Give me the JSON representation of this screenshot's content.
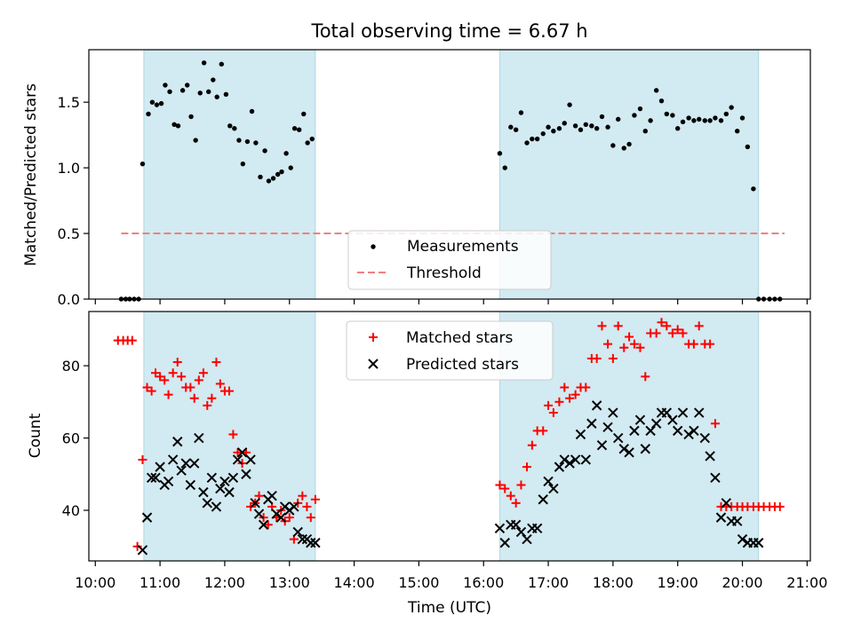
{
  "title": "Total observing time = 6.67 h",
  "colors": {
    "band": "#add8e6",
    "matched": "#ff0000",
    "predicted": "#000000",
    "threshold": "#f08080",
    "measurement": "#000000"
  },
  "chart_data": [
    {
      "type": "scatter",
      "ylabel": "Matched/Predicted stars",
      "ylim": [
        0,
        1.9
      ],
      "xlim": [
        9.9,
        21.05
      ],
      "ticks_y": [
        "0.0",
        "0.5",
        "1.0",
        "1.5"
      ],
      "observing_windows": [
        [
          10.75,
          13.4
        ],
        [
          16.25,
          20.25
        ]
      ],
      "threshold": {
        "value": 0.5,
        "x_range": [
          10.4,
          20.65
        ]
      },
      "legend": {
        "position": "bottom-center",
        "entries": [
          "Measurements",
          "Threshold"
        ]
      },
      "series": [
        {
          "name": "Measurements",
          "x": [
            10.4,
            10.47,
            10.53,
            10.6,
            10.67,
            10.73,
            10.82,
            10.88,
            10.95,
            11.02,
            11.08,
            11.15,
            11.22,
            11.28,
            11.35,
            11.42,
            11.48,
            11.55,
            11.62,
            11.68,
            11.75,
            11.82,
            11.88,
            11.95,
            12.02,
            12.08,
            12.15,
            12.22,
            12.28,
            12.35,
            12.42,
            12.48,
            12.55,
            12.62,
            12.68,
            12.75,
            12.82,
            12.88,
            12.95,
            13.02,
            13.08,
            13.15,
            13.22,
            13.28,
            13.35,
            16.25,
            16.33,
            16.42,
            16.5,
            16.58,
            16.67,
            16.75,
            16.83,
            16.92,
            17.0,
            17.08,
            17.17,
            17.25,
            17.33,
            17.42,
            17.5,
            17.58,
            17.67,
            17.75,
            17.83,
            17.92,
            18.0,
            18.08,
            18.17,
            18.25,
            18.33,
            18.42,
            18.5,
            18.58,
            18.67,
            18.75,
            18.83,
            18.92,
            19.0,
            19.08,
            19.17,
            19.25,
            19.33,
            19.42,
            19.5,
            19.58,
            19.67,
            19.75,
            19.83,
            19.92,
            20.0,
            20.08,
            20.17,
            20.25,
            20.33,
            20.42,
            20.5,
            20.58
          ],
          "y": [
            0.0,
            0.0,
            0.0,
            0.0,
            0.0,
            1.03,
            1.41,
            1.5,
            1.48,
            1.49,
            1.63,
            1.58,
            1.33,
            1.32,
            1.59,
            1.63,
            1.39,
            1.21,
            1.57,
            1.8,
            1.58,
            1.67,
            1.54,
            1.79,
            1.56,
            1.32,
            1.3,
            1.21,
            1.03,
            1.2,
            1.43,
            1.19,
            0.93,
            1.13,
            0.9,
            0.92,
            0.95,
            0.97,
            1.11,
            1.0,
            1.3,
            1.29,
            1.41,
            1.19,
            1.22,
            1.11,
            1.0,
            1.31,
            1.29,
            1.42,
            1.19,
            1.22,
            1.22,
            1.26,
            1.31,
            1.28,
            1.3,
            1.34,
            1.48,
            1.32,
            1.29,
            1.33,
            1.32,
            1.3,
            1.39,
            1.31,
            1.17,
            1.37,
            1.15,
            1.18,
            1.4,
            1.45,
            1.28,
            1.36,
            1.59,
            1.51,
            1.41,
            1.4,
            1.3,
            1.35,
            1.38,
            1.36,
            1.37,
            1.36,
            1.36,
            1.38,
            1.36,
            1.41,
            1.46,
            1.28,
            1.38,
            1.16,
            0.84,
            0.0,
            0.0,
            0.0,
            0.0,
            0.0
          ]
        }
      ]
    },
    {
      "type": "scatter",
      "ylabel": "Count",
      "xlabel": "Time (UTC)",
      "ylim": [
        26,
        95
      ],
      "xlim": [
        9.9,
        21.05
      ],
      "ticks_y": [
        "40",
        "60",
        "80"
      ],
      "ticks_x": [
        "10:00",
        "11:00",
        "12:00",
        "13:00",
        "14:00",
        "15:00",
        "16:00",
        "17:00",
        "18:00",
        "19:00",
        "20:00",
        "21:00"
      ],
      "observing_windows": [
        [
          10.75,
          13.4
        ],
        [
          16.25,
          20.25
        ]
      ],
      "legend": {
        "position": "top-center",
        "entries": [
          "Matched stars",
          "Predicted stars"
        ]
      },
      "series": [
        {
          "name": "Matched stars",
          "x": [
            10.35,
            10.43,
            10.5,
            10.57,
            10.65,
            10.73,
            10.8,
            10.87,
            10.93,
            11.0,
            11.07,
            11.13,
            11.2,
            11.27,
            11.33,
            11.4,
            11.47,
            11.53,
            11.6,
            11.67,
            11.73,
            11.8,
            11.87,
            11.93,
            12.0,
            12.07,
            12.13,
            12.2,
            12.27,
            12.33,
            12.4,
            12.47,
            12.53,
            12.6,
            12.67,
            12.73,
            12.8,
            12.87,
            12.93,
            13.0,
            13.07,
            13.13,
            13.2,
            13.27,
            13.33,
            13.4,
            16.25,
            16.33,
            16.42,
            16.5,
            16.58,
            16.67,
            16.75,
            16.83,
            16.92,
            17.0,
            17.08,
            17.17,
            17.25,
            17.33,
            17.42,
            17.5,
            17.58,
            17.67,
            17.75,
            17.83,
            17.92,
            18.0,
            18.08,
            18.17,
            18.25,
            18.33,
            18.42,
            18.5,
            18.58,
            18.67,
            18.75,
            18.83,
            18.92,
            19.0,
            19.08,
            19.17,
            19.25,
            19.33,
            19.42,
            19.5,
            19.58,
            19.67,
            19.75,
            19.83,
            19.92,
            20.0,
            20.08,
            20.17,
            20.25,
            20.33,
            20.42,
            20.5,
            20.58
          ],
          "y": [
            87,
            87,
            87,
            87,
            30,
            54,
            74,
            73,
            78,
            77,
            76,
            72,
            78,
            81,
            77,
            74,
            74,
            71,
            76,
            78,
            69,
            71,
            81,
            75,
            73,
            73,
            61,
            56,
            53,
            56,
            41,
            42,
            44,
            38,
            36,
            41,
            38,
            40,
            37,
            38,
            32,
            42,
            44,
            41,
            38,
            43,
            47,
            46,
            44,
            42,
            47,
            52,
            58,
            62,
            62,
            69,
            67,
            70,
            74,
            71,
            72,
            74,
            74,
            82,
            82,
            91,
            86,
            82,
            91,
            85,
            88,
            86,
            85,
            77,
            89,
            89,
            92,
            91,
            89,
            90,
            89,
            86,
            86,
            91,
            86,
            86,
            64,
            41,
            41,
            41,
            41,
            41,
            41,
            41,
            41,
            41,
            41,
            41,
            41
          ],
          "note_marker": "+"
        },
        {
          "name": "Predicted stars",
          "x": [
            10.73,
            10.8,
            10.87,
            10.93,
            11.0,
            11.07,
            11.13,
            11.2,
            11.27,
            11.33,
            11.4,
            11.47,
            11.53,
            11.6,
            11.67,
            11.73,
            11.8,
            11.87,
            11.93,
            12.0,
            12.07,
            12.13,
            12.2,
            12.27,
            12.33,
            12.4,
            12.47,
            12.53,
            12.6,
            12.67,
            12.73,
            12.8,
            12.87,
            12.93,
            13.0,
            13.07,
            13.13,
            13.2,
            13.27,
            13.33,
            13.4,
            16.25,
            16.33,
            16.42,
            16.5,
            16.58,
            16.67,
            16.75,
            16.83,
            16.92,
            17.0,
            17.08,
            17.17,
            17.25,
            17.33,
            17.42,
            17.5,
            17.58,
            17.67,
            17.75,
            17.83,
            17.92,
            18.0,
            18.08,
            18.17,
            18.25,
            18.33,
            18.42,
            18.5,
            18.58,
            18.67,
            18.75,
            18.83,
            18.92,
            19.0,
            19.08,
            19.17,
            19.25,
            19.33,
            19.42,
            19.5,
            19.58,
            19.67,
            19.75,
            19.83,
            19.92,
            20.0,
            20.08,
            20.17,
            20.25
          ],
          "y": [
            29,
            38,
            49,
            49,
            52,
            47,
            48,
            54,
            59,
            51,
            53,
            47,
            53,
            60,
            45,
            42,
            49,
            41,
            46,
            48,
            45,
            49,
            54,
            56,
            50,
            54,
            42,
            39,
            36,
            43,
            44,
            39,
            38,
            41,
            40,
            41,
            34,
            32,
            32,
            31,
            31,
            35,
            31,
            36,
            36,
            34,
            32,
            35,
            35,
            43,
            48,
            46,
            52,
            54,
            53,
            54,
            61,
            54,
            64,
            69,
            58,
            63,
            67,
            60,
            57,
            56,
            62,
            65,
            57,
            62,
            64,
            67,
            67,
            65,
            62,
            67,
            61,
            62,
            67,
            60,
            55,
            49,
            38,
            42,
            37,
            37,
            32,
            31,
            31,
            31
          ],
          "note_marker": "x"
        }
      ]
    }
  ]
}
